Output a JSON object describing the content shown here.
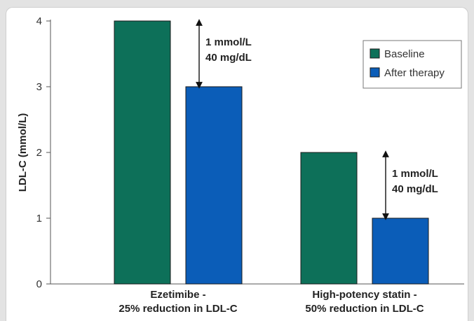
{
  "chart_data": {
    "type": "bar",
    "categories": [
      "Ezetimibe -\n25% reduction in LDL-C",
      "High-potency statin -\n50% reduction in LDL-C"
    ],
    "category_lines": [
      [
        "Ezetimibe -",
        "25% reduction in LDL-C"
      ],
      [
        "High-potency statin -",
        "50% reduction in LDL-C"
      ]
    ],
    "series": [
      {
        "name": "Baseline",
        "values": [
          4,
          2
        ],
        "color": "#0d7059"
      },
      {
        "name": "After therapy",
        "values": [
          3,
          1
        ],
        "color": "#0b5db8"
      }
    ],
    "title": "",
    "xlabel": "",
    "ylabel": "LDL-C (mmol/L)",
    "ylim": [
      0,
      4
    ],
    "yticks": [
      0,
      1,
      2,
      3,
      4
    ],
    "grid": false,
    "legend_position": "top-right",
    "annotations": [
      {
        "category_index": 0,
        "from": 4,
        "to": 3,
        "lines": [
          "1 mmol/L",
          "40 mg/dL"
        ]
      },
      {
        "category_index": 1,
        "from": 2,
        "to": 1,
        "lines": [
          "1 mmol/L",
          "40 mg/dL"
        ]
      }
    ]
  }
}
